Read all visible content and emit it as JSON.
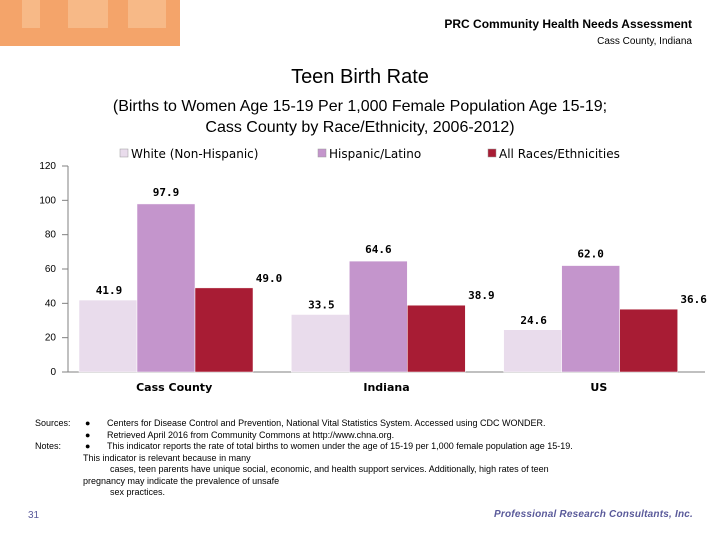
{
  "header": {
    "title": "PRC Community Health Needs Assessment",
    "subtitle": "Cass County, Indiana"
  },
  "chart_data": {
    "type": "bar",
    "title": "Teen Birth Rate",
    "subtitle_line1": "(Births to Women Age 15-19 Per 1,000 Female Population Age 15-19;",
    "subtitle_line2": "Cass County by Race/Ethnicity, 2006-2012)",
    "categories": [
      "Cass County",
      "Indiana",
      "US"
    ],
    "series": [
      {
        "name": "White (Non-Hispanic)",
        "color": "#e9dcec",
        "values": [
          41.9,
          33.5,
          24.6
        ],
        "labels": [
          "41.9",
          "33.5",
          "24.6"
        ]
      },
      {
        "name": "Hispanic/Latino",
        "color": "#c495cc",
        "values": [
          97.9,
          64.6,
          62.0
        ],
        "labels": [
          "97.9",
          "64.6",
          "62.0"
        ]
      },
      {
        "name": "All Races/Ethnicities",
        "color": "#a81c34",
        "values": [
          49.0,
          38.9,
          36.6
        ],
        "labels": [
          "49.0",
          "38.9",
          "36.6"
        ]
      }
    ],
    "yticks": [
      "0",
      "20",
      "40",
      "60",
      "80",
      "100",
      "120"
    ],
    "ylim": [
      0,
      120
    ],
    "xlabel": "",
    "ylabel": "",
    "grid": false,
    "legend": "top"
  },
  "notes": {
    "sources_label": "Sources:",
    "source1": "Centers for Disease Control and Prevention, National Vital Statistics System. Accessed using CDC WONDER.",
    "source2": "Retrieved April 2016 from Community Commons at http://www.chna.org.",
    "notes_label": "Notes:",
    "note1": "This indicator reports the rate of total births to women under the age of 15-19 per 1,000 female population age 15-19.",
    "note2_line1": "This indicator is relevant because in many",
    "note2_line2": "cases, teen parents have unique social, economic, and health support services. Additionally, high rates of teen",
    "note2_line3": "pregnancy may indicate the prevalence of unsafe",
    "note2_line4": "sex practices.",
    "bullet": "●"
  },
  "footer": {
    "page_number": "31",
    "logo_text": "Professional Research Consultants, Inc."
  }
}
